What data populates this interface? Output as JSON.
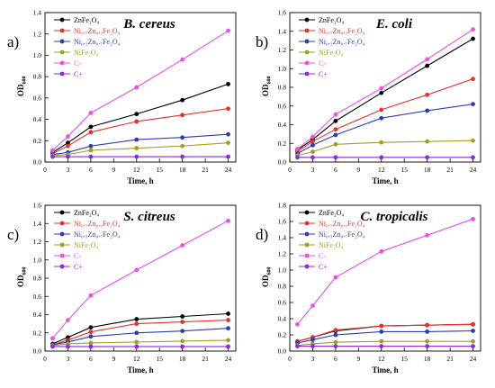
{
  "chart_data": [
    {
      "panel_label": "a)",
      "type": "line",
      "title": "B. cereus",
      "xlabel": "Time, h",
      "ylabel_main": "OD",
      "ylabel_sub": "600",
      "x": [
        1,
        3,
        6,
        12,
        18,
        24
      ],
      "xticks": [
        "0",
        "3",
        "6",
        "9",
        "12",
        "15",
        "18",
        "21",
        "24"
      ],
      "yticks": [
        "0.0",
        "0.2",
        "0.4",
        "0.6",
        "0.8",
        "1.0",
        "1.2",
        "1.4"
      ],
      "xlim": [
        0,
        25
      ],
      "ylim": [
        0,
        1.4
      ],
      "legend_position": "top-left",
      "series": [
        {
          "name": "ZnFe₂O₄",
          "color": "#000000",
          "values": [
            0.09,
            0.18,
            0.33,
            0.45,
            0.58,
            0.73
          ]
        },
        {
          "name": "Ni₀.₇Zn₀.₃Fe₂O₄",
          "color": "#e8312a",
          "values": [
            0.08,
            0.15,
            0.28,
            0.38,
            0.44,
            0.5
          ]
        },
        {
          "name": "Ni₀.₃Zn₀.₇Fe₂O₄",
          "color": "#2a3db5",
          "values": [
            0.07,
            0.09,
            0.15,
            0.21,
            0.23,
            0.26
          ]
        },
        {
          "name": "NiFe₂O₄",
          "color": "#a0a020",
          "values": [
            0.06,
            0.07,
            0.11,
            0.13,
            0.15,
            0.18
          ]
        },
        {
          "name": "C-",
          "color": "#ee4ee8",
          "values": [
            0.11,
            0.24,
            0.46,
            0.7,
            0.96,
            1.23
          ]
        },
        {
          "name": "C+",
          "color": "#8a2be2",
          "values": [
            0.05,
            0.05,
            0.05,
            0.05,
            0.05,
            0.05
          ]
        }
      ]
    },
    {
      "panel_label": "b)",
      "type": "line",
      "title": "E. coli",
      "xlabel": "Time, h",
      "ylabel_main": "OD",
      "ylabel_sub": "600",
      "x": [
        1,
        3,
        6,
        12,
        18,
        24
      ],
      "xticks": [
        "0",
        "3",
        "6",
        "9",
        "12",
        "15",
        "18",
        "21",
        "24"
      ],
      "yticks": [
        "0.0",
        "0.2",
        "0.4",
        "0.6",
        "0.8",
        "1.0",
        "1.2",
        "1.4",
        "1.6"
      ],
      "xlim": [
        0,
        25
      ],
      "ylim": [
        0,
        1.6
      ],
      "legend_position": "top-left",
      "series": [
        {
          "name": "ZnFe₂O₄",
          "color": "#000000",
          "values": [
            0.13,
            0.24,
            0.44,
            0.74,
            1.03,
            1.32
          ]
        },
        {
          "name": "Ni₀.₇Zn₀.₃Fe₂O₄",
          "color": "#e8312a",
          "values": [
            0.11,
            0.22,
            0.35,
            0.56,
            0.72,
            0.89
          ]
        },
        {
          "name": "Ni₀.₃Zn₀.₇Fe₂O₄",
          "color": "#2a3db5",
          "values": [
            0.09,
            0.18,
            0.29,
            0.47,
            0.55,
            0.62
          ]
        },
        {
          "name": "NiFe₂O₄",
          "color": "#a0a020",
          "values": [
            0.07,
            0.11,
            0.19,
            0.21,
            0.22,
            0.23
          ]
        },
        {
          "name": "C-",
          "color": "#ee4ee8",
          "values": [
            0.14,
            0.27,
            0.51,
            0.79,
            1.1,
            1.42
          ]
        },
        {
          "name": "C+",
          "color": "#8a2be2",
          "values": [
            0.05,
            0.05,
            0.05,
            0.05,
            0.05,
            0.05
          ]
        }
      ]
    },
    {
      "panel_label": "c)",
      "type": "line",
      "title": "S. citreus",
      "xlabel": "Time, h",
      "ylabel_main": "OD",
      "ylabel_sub": "600",
      "x": [
        1,
        3,
        6,
        12,
        18,
        24
      ],
      "xticks": [
        "0",
        "3",
        "6",
        "9",
        "12",
        "15",
        "18",
        "21",
        "24"
      ],
      "yticks": [
        "0.0",
        "0.2",
        "0.4",
        "0.6",
        "0.8",
        "1.0",
        "1.2",
        "1.4",
        "1.6"
      ],
      "xlim": [
        0,
        25
      ],
      "ylim": [
        0,
        1.6
      ],
      "legend_position": "top-left",
      "series": [
        {
          "name": "ZnFe₂O₄",
          "color": "#000000",
          "values": [
            0.08,
            0.15,
            0.26,
            0.35,
            0.38,
            0.41
          ]
        },
        {
          "name": "Ni₀.₇Zn₀.₃Fe₂O₄",
          "color": "#e8312a",
          "values": [
            0.07,
            0.12,
            0.21,
            0.3,
            0.32,
            0.34
          ]
        },
        {
          "name": "Ni₀.₃Zn₀.₇Fe₂O₄",
          "color": "#2a3db5",
          "values": [
            0.07,
            0.1,
            0.16,
            0.2,
            0.22,
            0.25
          ]
        },
        {
          "name": "NiFe₂O₄",
          "color": "#a0a020",
          "values": [
            0.06,
            0.08,
            0.09,
            0.1,
            0.11,
            0.12
          ]
        },
        {
          "name": "C-",
          "color": "#ee4ee8",
          "values": [
            0.14,
            0.34,
            0.61,
            0.89,
            1.16,
            1.43
          ]
        },
        {
          "name": "C+",
          "color": "#8a2be2",
          "values": [
            0.05,
            0.05,
            0.05,
            0.05,
            0.05,
            0.05
          ]
        }
      ]
    },
    {
      "panel_label": "d)",
      "type": "line",
      "title": "C. tropicalis",
      "xlabel": "Time, h",
      "ylabel_main": "OD",
      "ylabel_sub": "600",
      "x": [
        1,
        3,
        6,
        12,
        18,
        24
      ],
      "xticks": [
        "0",
        "3",
        "6",
        "9",
        "12",
        "15",
        "18",
        "21",
        "24"
      ],
      "yticks": [
        "0.0",
        "0.2",
        "0.4",
        "0.6",
        "0.8",
        "1.0",
        "1.2",
        "1.4",
        "1.6",
        "1.8"
      ],
      "xlim": [
        0,
        25
      ],
      "ylim": [
        0,
        1.8
      ],
      "legend_position": "top-left",
      "series": [
        {
          "name": "ZnFe₂O₄",
          "color": "#000000",
          "values": [
            0.12,
            0.17,
            0.25,
            0.31,
            0.32,
            0.33
          ]
        },
        {
          "name": "Ni₀.₇Zn₀.₃Fe₂O₄",
          "color": "#e8312a",
          "values": [
            0.12,
            0.17,
            0.26,
            0.31,
            0.32,
            0.33
          ]
        },
        {
          "name": "Ni₀.₃Zn₀.₇Fe₂O₄",
          "color": "#2a3db5",
          "values": [
            0.1,
            0.14,
            0.2,
            0.24,
            0.24,
            0.25
          ]
        },
        {
          "name": "NiFe₂O₄",
          "color": "#a0a020",
          "values": [
            0.07,
            0.09,
            0.11,
            0.12,
            0.12,
            0.12
          ]
        },
        {
          "name": "C-",
          "color": "#ee4ee8",
          "values": [
            0.33,
            0.56,
            0.91,
            1.23,
            1.43,
            1.63
          ]
        },
        {
          "name": "C+",
          "color": "#8a2be2",
          "values": [
            0.06,
            0.06,
            0.06,
            0.06,
            0.06,
            0.06
          ]
        }
      ]
    }
  ]
}
